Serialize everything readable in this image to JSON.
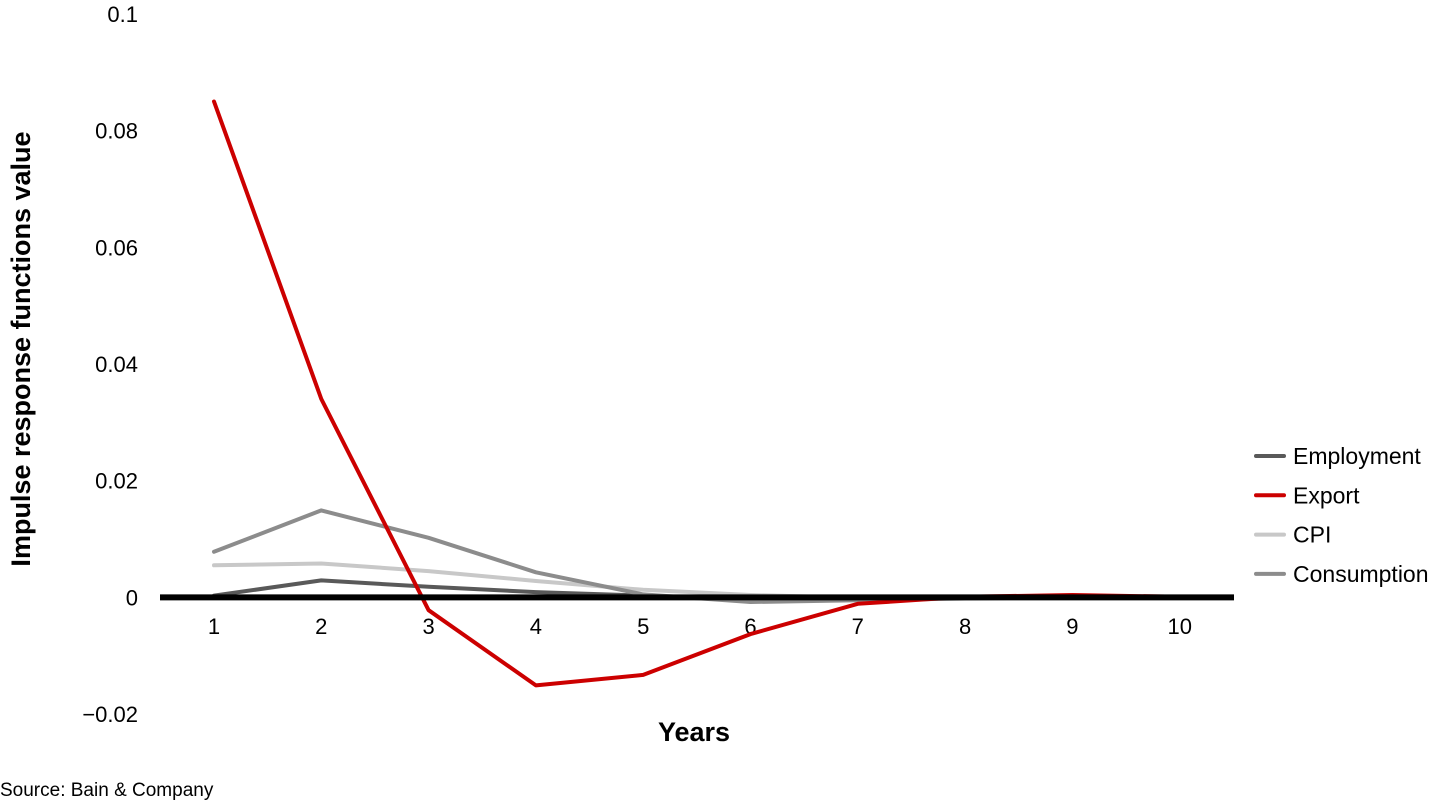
{
  "source_note": "Source: Bain & Company",
  "chart_data": {
    "type": "line",
    "title": "",
    "xlabel": "Years",
    "ylabel": "Impulse response functions value",
    "categories": [
      "1",
      "2",
      "3",
      "4",
      "5",
      "6",
      "7",
      "8",
      "9",
      "10"
    ],
    "ylim": [
      -0.02,
      0.1
    ],
    "yticks": [
      "0.1",
      "0.08",
      "0.06",
      "0.04",
      "0.02",
      "0",
      "−0.02"
    ],
    "ytick_values": [
      0.1,
      0.08,
      0.06,
      0.04,
      0.02,
      0,
      -0.02
    ],
    "grid": false,
    "legend_position": "right",
    "series": [
      {
        "name": "Employment",
        "color": "#595959",
        "values": [
          0.0003,
          0.0029,
          0.0018,
          0.0009,
          0.0003,
          -0.0004,
          -0.0002,
          -0.0001,
          0.0,
          0.0
        ]
      },
      {
        "name": "Export",
        "color": "#cc0000",
        "values": [
          0.085,
          0.034,
          -0.0022,
          -0.0151,
          -0.0133,
          -0.0063,
          -0.0011,
          0.0001,
          0.0004,
          0.0001
        ]
      },
      {
        "name": "CPI",
        "color": "#c8c8c8",
        "values": [
          0.0055,
          0.0058,
          0.0045,
          0.0028,
          0.0013,
          0.0004,
          -0.0001,
          -0.0001,
          0.0,
          0.0
        ]
      },
      {
        "name": "Consumption",
        "color": "#8c8c8c",
        "values": [
          0.0078,
          0.0149,
          0.0102,
          0.0043,
          0.0005,
          -0.0008,
          -0.0005,
          -0.0002,
          0.0,
          0.0
        ]
      }
    ]
  }
}
